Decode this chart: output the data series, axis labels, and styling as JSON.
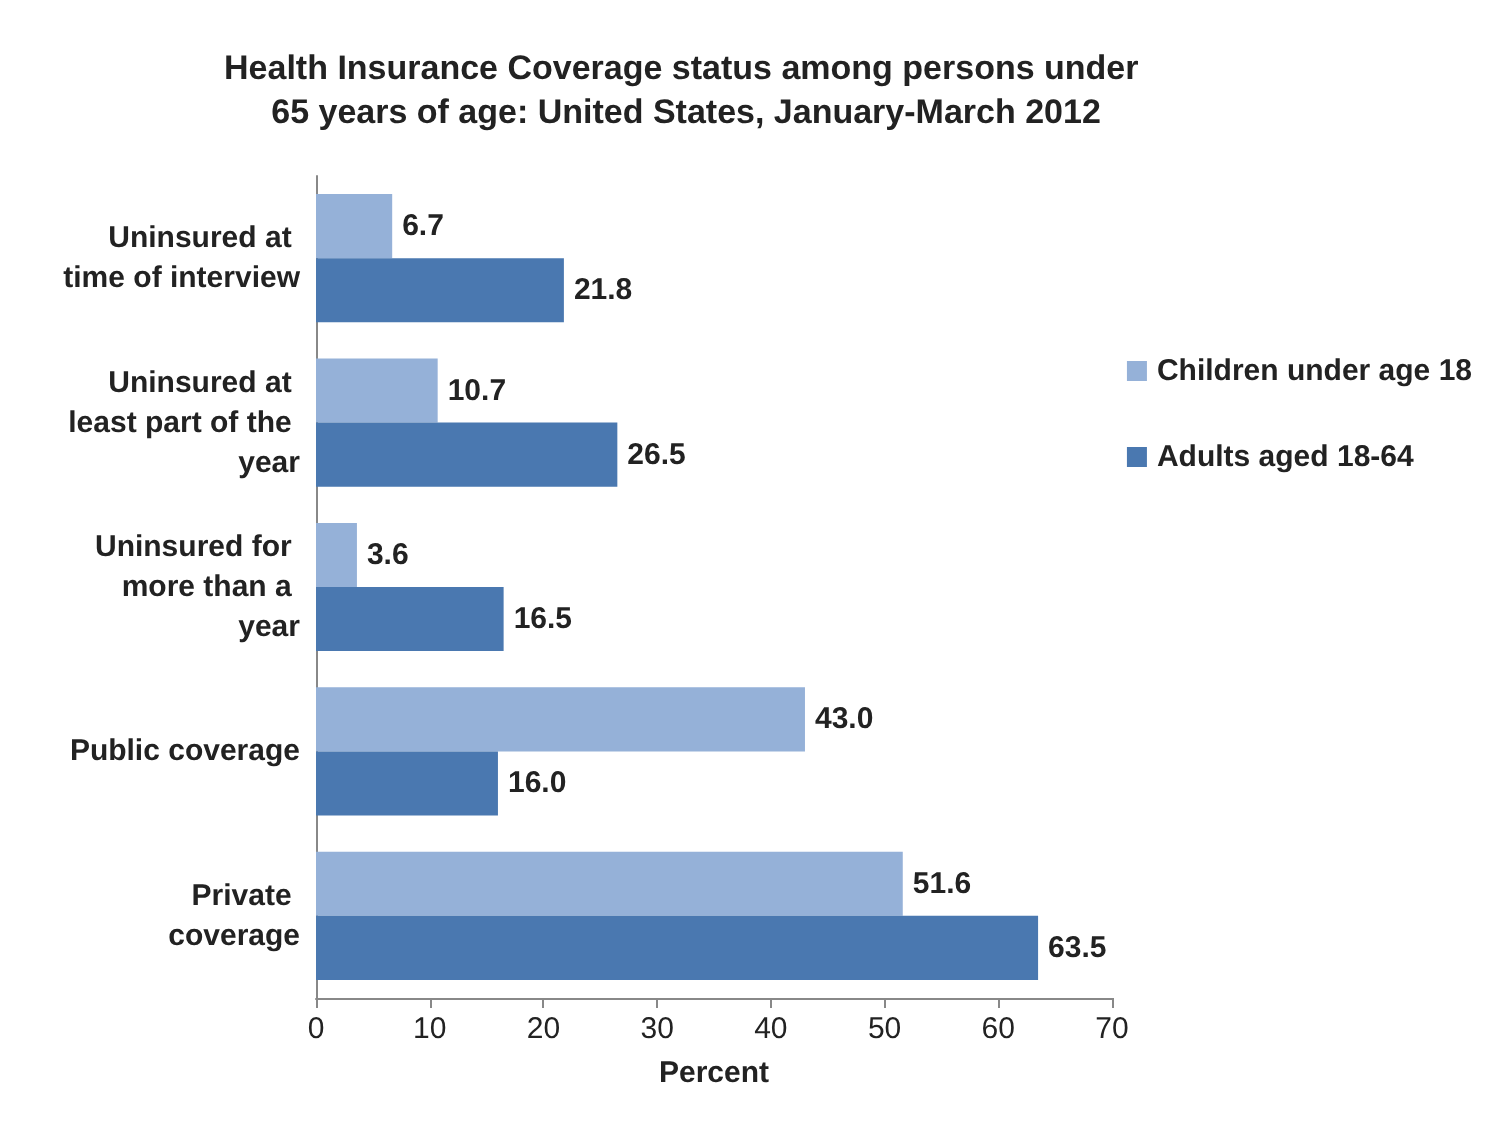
{
  "chart_data": {
    "type": "bar",
    "orientation": "horizontal",
    "title": "Health Insurance Coverage status among persons under 65 years of age: United States, January-March 2012",
    "xlabel": "Percent",
    "categories": [
      "Uninsured at time of interview",
      "Uninsured at least part of the year",
      "Uninsured for more than a year",
      "Public coverage",
      "Private coverage"
    ],
    "series": [
      {
        "name": "Children under age 18",
        "color": "#95b1d8",
        "values": [
          6.7,
          10.7,
          3.6,
          43.0,
          51.6
        ],
        "value_labels": [
          "6.7",
          "10.7",
          "3.6",
          "43.0",
          "51.6"
        ]
      },
      {
        "name": "Adults aged 18-64",
        "color": "#4a78b0",
        "values": [
          21.8,
          26.5,
          16.5,
          16.0,
          63.5
        ],
        "value_labels": [
          "21.8",
          "26.5",
          "16.5",
          "16.0",
          "63.5"
        ]
      }
    ],
    "xlim": [
      0,
      70
    ],
    "xticks": [
      0,
      10,
      20,
      30,
      40,
      50,
      60,
      70
    ],
    "legend": "right",
    "grid": false
  }
}
